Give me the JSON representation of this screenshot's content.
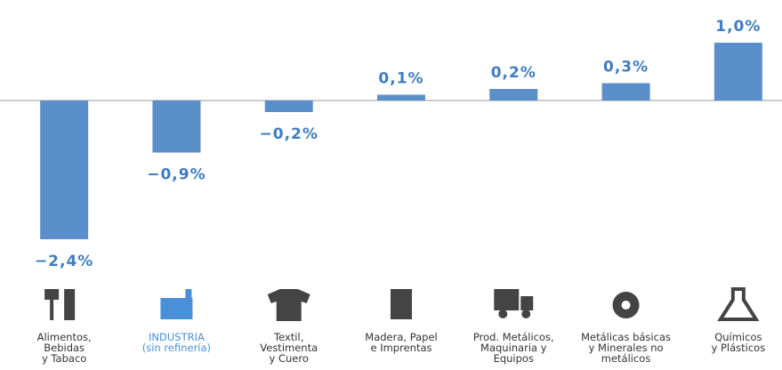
{
  "chart_data": {
    "type": "bar",
    "categories": [
      "Alimentos,\nBebidas\ny Tabaco",
      "INDUSTRIA\n(sin refinería)",
      "Textil,\nVestimenta\ny Cuero",
      "Madera, Papel\ne Imprentas",
      "Prod. Metálicos,\nMaquinaria y\nEquipos",
      "Metálicas básicas\ny Minerales no\nmetálicos",
      "Químicos\ny Plásticos"
    ],
    "values": [
      -2.4,
      -0.9,
      -0.2,
      0.1,
      0.2,
      0.3,
      1.0
    ],
    "value_labels": [
      "−2,4%",
      "−0,9%",
      "−0,2%",
      "0,1%",
      "0,2%",
      "0,3%",
      "1,0%"
    ],
    "color": "#5b8fc9",
    "label_colors": [
      "#333333",
      "#4a90d9",
      "#333333",
      "#333333",
      "#333333",
      "#333333",
      "#333333"
    ],
    "ylim": [
      -2.5,
      1.2
    ]
  }
}
